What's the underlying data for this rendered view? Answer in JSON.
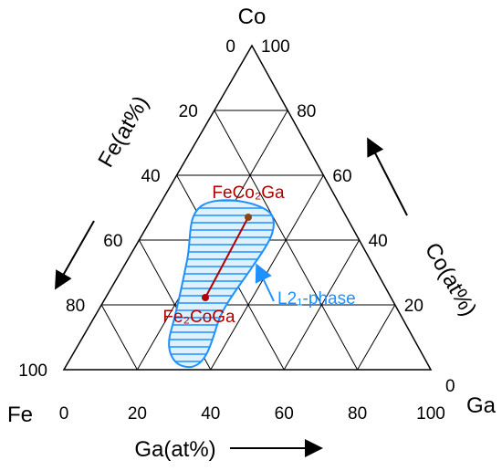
{
  "vertices": {
    "top": "Co",
    "left": "Fe",
    "right": "Ga"
  },
  "axes": {
    "left": {
      "title": "Fe(at%)",
      "ticks": [
        "0",
        "20",
        "40",
        "60",
        "80",
        "100"
      ]
    },
    "right": {
      "title": "Co(at%)",
      "ticks": [
        "100",
        "80",
        "60",
        "40",
        "20",
        "0"
      ]
    },
    "bottom": {
      "title": "Ga(at%)",
      "ticks": [
        "0",
        "20",
        "40",
        "60",
        "80",
        "100"
      ]
    }
  },
  "labels": {
    "upper_point": "FeCo₂Ga",
    "lower_point": "Fe₂CoGa",
    "region": "L2₁-phase"
  }
}
